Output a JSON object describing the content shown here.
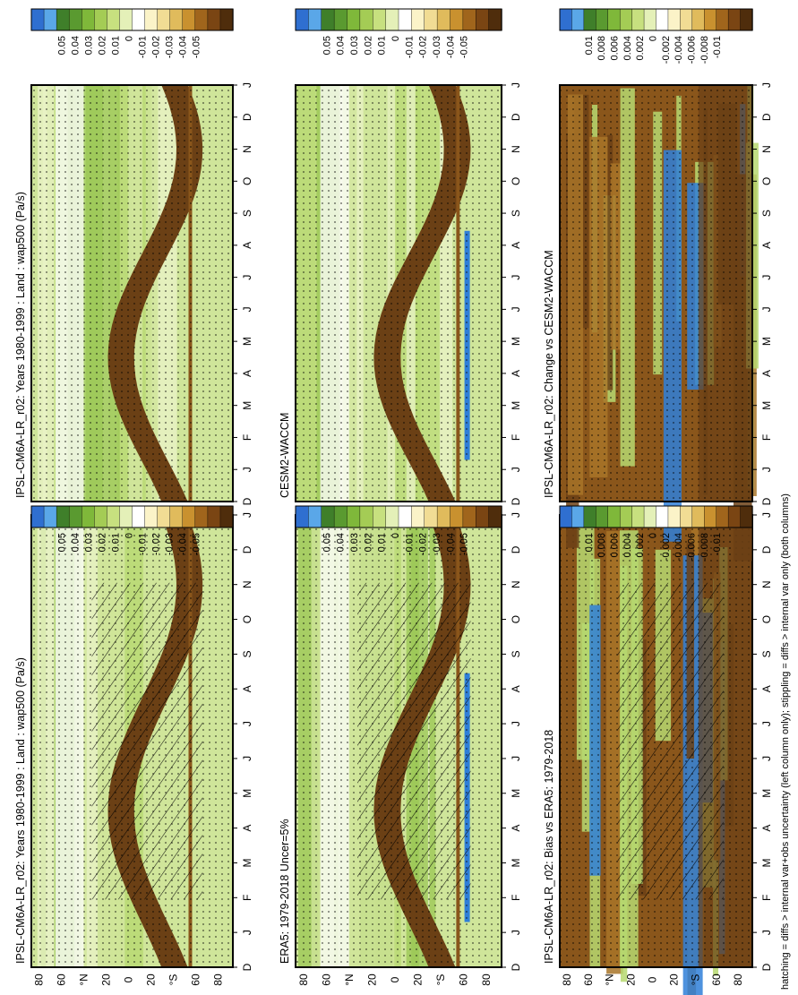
{
  "figure": {
    "footnote": "hatching = diffs > internal var+obs uncertainty (left column only); stippling = diffs > internal var only (both columns)",
    "month_labels": [
      "D",
      "J",
      "F",
      "M",
      "A",
      "M",
      "J",
      "J",
      "A",
      "S",
      "O",
      "N",
      "D",
      "J"
    ],
    "lat_labels": [
      "80",
      "60",
      "°N",
      "20",
      "0",
      "20",
      "°S",
      "60",
      "80"
    ]
  },
  "colors": {
    "scale_top": [
      "#2f6fd0",
      "#5aa7e8",
      "#3f7f2a",
      "#5a9a30",
      "#7fb83a",
      "#a4cc55",
      "#c7e07f",
      "#e4f0b8",
      "#ffffff",
      "#fbf3c8",
      "#f1dc94",
      "#e0bb5c",
      "#c9912f",
      "#a0651c",
      "#7a4513",
      "#4f2d0c"
    ],
    "panel_cool": [
      "#cfe59a",
      "#b6d870",
      "#9cc856",
      "#e9f3c6",
      "#ffffff"
    ],
    "panel_warm": [
      "#6b4015",
      "#8a561b",
      "#a87428",
      "#cba055"
    ],
    "blue": "#2f7fd8"
  },
  "colorbars": [
    {
      "labels": [
        "0.05",
        "0.04",
        "0.03",
        "0.02",
        "0.01",
        "0",
        "-0.01",
        "-0.02",
        "-0.03",
        "-0.04",
        "-0.05"
      ]
    },
    {
      "labels": [
        "0.05",
        "0.04",
        "0.03",
        "0.02",
        "0.01",
        "0",
        "-0.01",
        "-0.02",
        "-0.03",
        "-0.04",
        "-0.05"
      ]
    },
    {
      "labels": [
        "0.01",
        "0.008",
        "0.006",
        "0.004",
        "0.002",
        "0",
        "-0.002",
        "-0.004",
        "-0.006",
        "-0.008",
        "-0.01"
      ]
    }
  ],
  "panels": [
    {
      "id": "model-left",
      "title": "IPSL-CM6A-LR_r02: Years 1980-1999 : Land : wap500 (Pa/s)",
      "type": "clim",
      "hatch": true,
      "stipple": true
    },
    {
      "id": "model-right",
      "title": "IPSL-CM6A-LR_r02: Years 1980-1999 : Land : wap500 (Pa/s)",
      "type": "clim",
      "hatch": false,
      "stipple": true
    },
    {
      "id": "obs",
      "title": "ERA5: 1979-2018 Uncer=5%",
      "type": "clim",
      "hatch": true,
      "stipple": true
    },
    {
      "id": "ref-model",
      "title": "CESM2-WACCM",
      "type": "clim",
      "hatch": false,
      "stipple": true
    },
    {
      "id": "bias",
      "title": "IPSL-CM6A-LR_r02: Bias vs ERA5: 1979-2018",
      "type": "diff",
      "hatch": true,
      "stipple": true
    },
    {
      "id": "change",
      "title": "IPSL-CM6A-LR_r02: Change vs CESM2-WACCM",
      "type": "diff",
      "hatch": false,
      "stipple": true
    }
  ],
  "chart_data": {
    "type": "heatmap",
    "variable": "wap500 (Pa/s)",
    "x_axis": "month (D..J)",
    "y_axis": "latitude (80N..80S)",
    "color_scale_clim": [
      -0.05,
      0.05
    ],
    "color_scale_diff": [
      -0.01,
      0.01
    ]
  }
}
